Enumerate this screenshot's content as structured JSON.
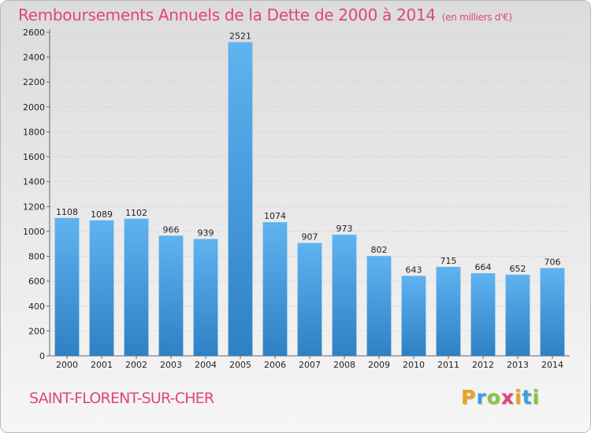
{
  "header": {
    "title": "Remboursements Annuels de la Dette de 2000 à 2014",
    "subtitle": "(en milliers d'€)"
  },
  "footer": {
    "town": "SAINT-FLORENT-SUR-CHER",
    "brand": {
      "letters": [
        "P",
        "r",
        "o",
        "x",
        "i",
        "t",
        "i"
      ],
      "colors": [
        "#f0a21a",
        "#3aa0dc",
        "#8bc53f",
        "#e0457b",
        "#f0a21a",
        "#3aa0dc",
        "#8bc53f"
      ]
    }
  },
  "chart_data": {
    "type": "bar",
    "categories": [
      "2000",
      "2001",
      "2002",
      "2003",
      "2004",
      "2005",
      "2006",
      "2007",
      "2008",
      "2009",
      "2010",
      "2011",
      "2012",
      "2013",
      "2014"
    ],
    "values": [
      1108,
      1089,
      1102,
      966,
      939,
      2521,
      1074,
      907,
      973,
      802,
      643,
      715,
      664,
      652,
      706
    ],
    "data_labels": [
      "1108",
      "1089",
      "1102",
      "966",
      "939",
      "2521",
      "1074",
      "907",
      "973",
      "802",
      "643",
      "715",
      "664",
      "652",
      "706"
    ],
    "yticks": [
      "0",
      "200",
      "400",
      "600",
      "800",
      "1000",
      "1200",
      "1400",
      "1600",
      "1800",
      "2000",
      "2200",
      "2400",
      "2600"
    ],
    "ylim": [
      0,
      2600
    ],
    "grid": true,
    "bar_color": "#4a9fe0",
    "xlabel": "",
    "ylabel": ""
  }
}
